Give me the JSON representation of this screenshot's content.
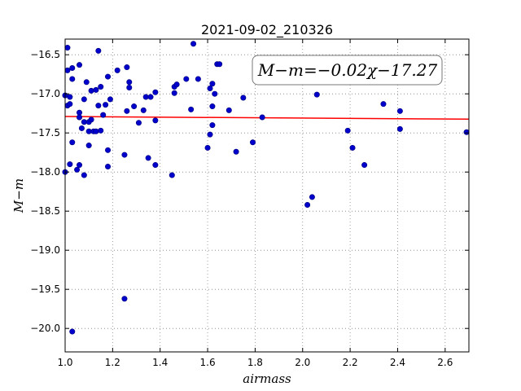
{
  "chart_data": {
    "type": "scatter",
    "title": "2021-09-02_210326",
    "xlabel": "airmass",
    "ylabel": "M−m",
    "xlim": [
      1.0,
      2.7
    ],
    "ylim": [
      -20.3,
      -16.3
    ],
    "y_inverted": true,
    "grid": true,
    "x_ticks": [
      1.0,
      1.2,
      1.4,
      1.6,
      1.8,
      2.0,
      2.2,
      2.4,
      2.6
    ],
    "x_tick_labels": [
      "1.0",
      "1.2",
      "1.4",
      "1.6",
      "1.8",
      "2.0",
      "2.2",
      "2.4",
      "2.6"
    ],
    "y_ticks": [
      -16.5,
      -17.0,
      -17.5,
      -18.0,
      -18.5,
      -19.0,
      -19.5,
      -20.0
    ],
    "y_tick_labels": [
      "−16.5",
      "−17.0",
      "−17.5",
      "−18.0",
      "−18.5",
      "−19.0",
      "−19.5",
      "−20.0"
    ],
    "annotation": "M−m=−0.02χ−17.27",
    "colors": {
      "points": "#0000cc",
      "fit": "#ff0000",
      "grid": "#888888"
    },
    "fit": {
      "slope": -0.02,
      "intercept": -17.27,
      "x": [
        1.0,
        2.7
      ]
    },
    "points": [
      [
        1.0,
        -17.02
      ],
      [
        1.0,
        -18.0
      ],
      [
        1.01,
        -16.41
      ],
      [
        1.01,
        -16.7
      ],
      [
        1.01,
        -17.15
      ],
      [
        1.02,
        -17.04
      ],
      [
        1.02,
        -17.13
      ],
      [
        1.02,
        -17.9
      ],
      [
        1.03,
        -16.67
      ],
      [
        1.03,
        -16.81
      ],
      [
        1.03,
        -17.62
      ],
      [
        1.03,
        -20.04
      ],
      [
        1.05,
        -17.97
      ],
      [
        1.06,
        -16.63
      ],
      [
        1.06,
        -17.24
      ],
      [
        1.06,
        -17.3
      ],
      [
        1.06,
        -17.91
      ],
      [
        1.07,
        -17.44
      ],
      [
        1.08,
        -17.07
      ],
      [
        1.08,
        -17.36
      ],
      [
        1.08,
        -18.04
      ],
      [
        1.09,
        -16.85
      ],
      [
        1.1,
        -17.36
      ],
      [
        1.1,
        -17.66
      ],
      [
        1.1,
        -17.48
      ],
      [
        1.11,
        -16.96
      ],
      [
        1.11,
        -17.33
      ],
      [
        1.12,
        -17.48
      ],
      [
        1.13,
        -16.95
      ],
      [
        1.13,
        -17.48
      ],
      [
        1.14,
        -16.45
      ],
      [
        1.14,
        -17.15
      ],
      [
        1.15,
        -17.47
      ],
      [
        1.15,
        -16.91
      ],
      [
        1.16,
        -17.27
      ],
      [
        1.17,
        -17.14
      ],
      [
        1.18,
        -16.78
      ],
      [
        1.18,
        -17.72
      ],
      [
        1.18,
        -17.93
      ],
      [
        1.19,
        -17.07
      ],
      [
        1.22,
        -16.7
      ],
      [
        1.25,
        -17.78
      ],
      [
        1.25,
        -19.62
      ],
      [
        1.26,
        -16.66
      ],
      [
        1.26,
        -17.22
      ],
      [
        1.27,
        -16.92
      ],
      [
        1.27,
        -16.85
      ],
      [
        1.29,
        -17.16
      ],
      [
        1.31,
        -17.37
      ],
      [
        1.33,
        -17.21
      ],
      [
        1.34,
        -17.04
      ],
      [
        1.35,
        -17.82
      ],
      [
        1.36,
        -17.04
      ],
      [
        1.38,
        -16.98
      ],
      [
        1.38,
        -17.34
      ],
      [
        1.38,
        -17.91
      ],
      [
        1.45,
        -18.04
      ],
      [
        1.46,
        -16.91
      ],
      [
        1.46,
        -16.99
      ],
      [
        1.47,
        -16.88
      ],
      [
        1.51,
        -16.81
      ],
      [
        1.53,
        -17.2
      ],
      [
        1.54,
        -16.36
      ],
      [
        1.56,
        -16.81
      ],
      [
        1.6,
        -17.69
      ],
      [
        1.61,
        -17.52
      ],
      [
        1.61,
        -16.93
      ],
      [
        1.62,
        -16.87
      ],
      [
        1.62,
        -17.16
      ],
      [
        1.62,
        -17.4
      ],
      [
        1.63,
        -17.0
      ],
      [
        1.64,
        -16.62
      ],
      [
        1.65,
        -16.62
      ],
      [
        1.69,
        -17.21
      ],
      [
        1.72,
        -17.74
      ],
      [
        1.75,
        -17.05
      ],
      [
        1.79,
        -17.62
      ],
      [
        1.83,
        -17.3
      ],
      [
        2.02,
        -18.42
      ],
      [
        2.04,
        -18.32
      ],
      [
        2.06,
        -17.01
      ],
      [
        2.19,
        -17.47
      ],
      [
        2.21,
        -17.69
      ],
      [
        2.26,
        -17.91
      ],
      [
        2.34,
        -17.13
      ],
      [
        2.41,
        -17.22
      ],
      [
        2.41,
        -17.45
      ],
      [
        2.69,
        -17.49
      ]
    ]
  }
}
